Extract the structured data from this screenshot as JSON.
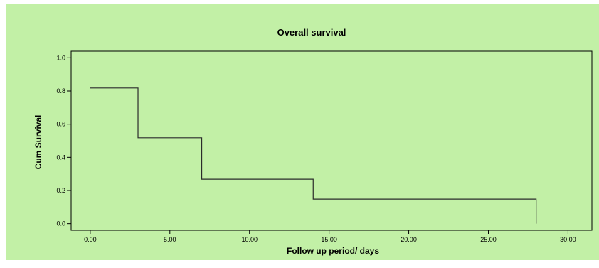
{
  "chart_data": {
    "type": "line",
    "title": "Overall survival",
    "xlabel": "Follow up period/ days",
    "ylabel": "Cum Survival",
    "xlim": [
      -1.2,
      31.5
    ],
    "ylim": [
      -0.04,
      1.04
    ],
    "x_ticks": [
      0,
      5,
      10,
      15,
      20,
      25,
      30
    ],
    "x_tick_labels": [
      "0.00",
      "5.00",
      "10.00",
      "15.00",
      "20.00",
      "25.00",
      "30.00"
    ],
    "y_ticks": [
      0.0,
      0.2,
      0.4,
      0.6,
      0.8,
      1.0
    ],
    "y_tick_labels": [
      "0.0",
      "0.2",
      "0.4",
      "0.6",
      "0.8",
      "1.0"
    ],
    "grid": false,
    "legend": "none",
    "series": [
      {
        "step": "post",
        "x": [
          0,
          3,
          7,
          14,
          28
        ],
        "y": [
          0.818,
          0.518,
          0.268,
          0.148,
          0.0
        ]
      }
    ],
    "colors": {
      "background": "#c2f0a6",
      "line": "#2b2b2b",
      "axis": "#000000",
      "page": "#ffffff"
    }
  }
}
